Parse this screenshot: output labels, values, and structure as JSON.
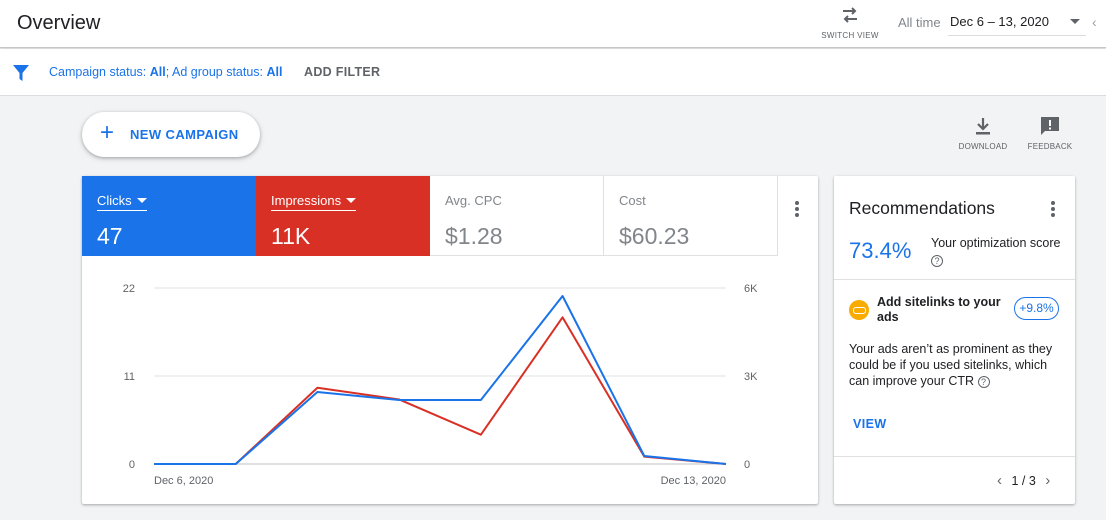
{
  "header": {
    "title": "Overview",
    "switch_view_label": "SWITCH VIEW",
    "date_range_label": "All time",
    "date_range_value": "Dec 6 – 13, 2020"
  },
  "filter": {
    "campaign_status_prefix": "Campaign status: ",
    "campaign_status_value": "All",
    "ad_group_status_prefix": "; Ad group status: ",
    "ad_group_status_value": "All",
    "add_filter_label": "ADD FILTER"
  },
  "actions": {
    "new_campaign_label": "NEW CAMPAIGN",
    "download_label": "DOWNLOAD",
    "feedback_label": "FEEDBACK"
  },
  "metrics": [
    {
      "name": "Clicks",
      "value": "47",
      "color": "#1a73e8",
      "selected": true
    },
    {
      "name": "Impressions",
      "value": "11K",
      "color": "#d93025",
      "selected": true
    },
    {
      "name": "Avg. CPC",
      "value": "$1.28",
      "selected": false
    },
    {
      "name": "Cost",
      "value": "$60.23",
      "selected": false
    }
  ],
  "chart_data": {
    "type": "line",
    "x": [
      "Dec 6, 2020",
      "Dec 7, 2020",
      "Dec 8, 2020",
      "Dec 9, 2020",
      "Dec 10, 2020",
      "Dec 11, 2020",
      "Dec 12, 2020",
      "Dec 13, 2020"
    ],
    "x_tick_labels": [
      "Dec 6, 2020",
      "Dec 13, 2020"
    ],
    "left_axis": {
      "ticks": [
        "22",
        "11",
        "0"
      ],
      "ylim": [
        0,
        22
      ]
    },
    "right_axis": {
      "ticks": [
        "6K",
        "3K",
        "0"
      ],
      "ylim": [
        0,
        6000
      ]
    },
    "series": [
      {
        "name": "Clicks",
        "axis": "left",
        "color": "#1a73e8",
        "values": [
          0,
          0,
          9,
          8,
          8,
          21,
          1,
          0
        ]
      },
      {
        "name": "Impressions",
        "axis": "right",
        "color": "#d93025",
        "values": [
          0,
          0,
          2600,
          2200,
          1000,
          5000,
          250,
          0
        ]
      }
    ]
  },
  "recommendations": {
    "title": "Recommendations",
    "score": "73.4%",
    "score_label": "Your optimization score",
    "item_title": "Add sitelinks to your ads",
    "item_badge": "+9.8%",
    "item_description": "Your ads aren’t as prominent as they could be if you used sitelinks, which can improve your CTR",
    "view_label": "VIEW",
    "pager": "1 / 3"
  }
}
